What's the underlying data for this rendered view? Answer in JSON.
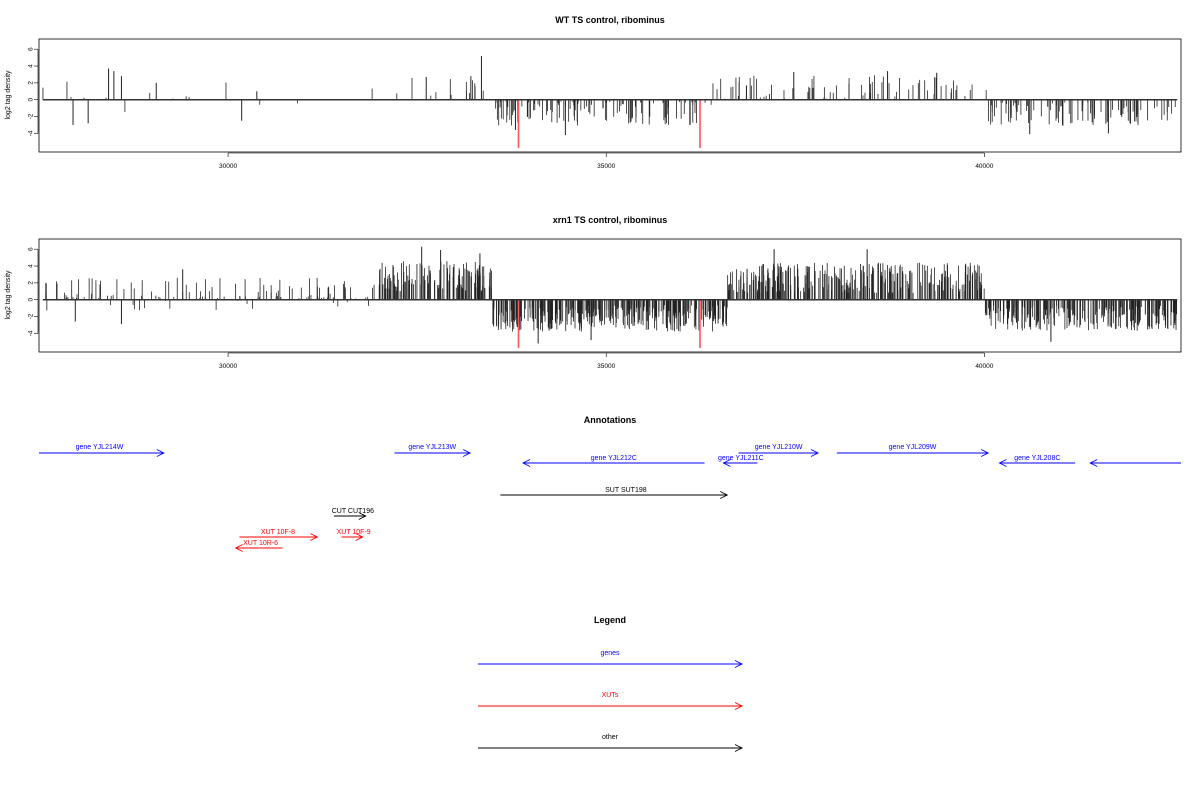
{
  "chart_data": [
    {
      "type": "bar",
      "title": "WT TS control, ribominus",
      "xlabel": "",
      "ylabel": "log2 tag density",
      "xlim": [
        27500,
        42600
      ],
      "ylim": [
        -5.5,
        6.5
      ],
      "x_ticks": [
        "30000",
        "35000",
        "40000"
      ],
      "y_ticks": [
        "6",
        "4",
        "2",
        "0",
        "-2",
        "-4"
      ],
      "colors": {
        "bars": "#222222",
        "markers": "#ff5555"
      },
      "markers": [
        33840,
        36240
      ],
      "regions": [
        {
          "start": 27550,
          "end": 30400,
          "mean_height": 0.3,
          "density": 0.004,
          "amplitude": 2.2
        },
        {
          "start": 30400,
          "end": 31600,
          "mean_height": 0.0,
          "density": 0.002,
          "amplitude": 1.5
        },
        {
          "start": 31600,
          "end": 33500,
          "mean_height": 1.2,
          "density": 0.012,
          "amplitude": 1.5
        },
        {
          "start": 33500,
          "end": 36400,
          "mean_height": -1.6,
          "density": 0.045,
          "amplitude": 1.5
        },
        {
          "start": 36400,
          "end": 40050,
          "mean_height": 1.4,
          "density": 0.022,
          "amplitude": 1.5
        },
        {
          "start": 40050,
          "end": 42550,
          "mean_height": -1.7,
          "density": 0.04,
          "amplitude": 1.4
        }
      ],
      "spikes": [
        {
          "x": 28420,
          "y": 3.7
        },
        {
          "x": 28490,
          "y": 3.4
        },
        {
          "x": 28590,
          "y": 2.8
        },
        {
          "x": 29050,
          "y": 2.0
        },
        {
          "x": 30380,
          "y": 1.0
        },
        {
          "x": 30180,
          "y": -2.5
        },
        {
          "x": 27950,
          "y": -3.0
        },
        {
          "x": 28150,
          "y": -2.8
        },
        {
          "x": 33350,
          "y": 5.2
        },
        {
          "x": 33210,
          "y": 2.8
        },
        {
          "x": 32620,
          "y": 2.7
        },
        {
          "x": 33800,
          "y": -3.6
        },
        {
          "x": 34460,
          "y": -4.2
        },
        {
          "x": 38720,
          "y": 3.4
        },
        {
          "x": 39370,
          "y": 3.2
        },
        {
          "x": 37480,
          "y": 3.3
        },
        {
          "x": 40600,
          "y": -4.1
        },
        {
          "x": 41640,
          "y": -4.0
        }
      ]
    },
    {
      "type": "bar",
      "title": "xrn1 TS control, ribominus",
      "xlabel": "",
      "ylabel": "log2 tag density",
      "xlim": [
        27500,
        42600
      ],
      "ylim": [
        -5.5,
        6.5
      ],
      "x_ticks": [
        "30000",
        "35000",
        "40000"
      ],
      "y_ticks": [
        "6",
        "4",
        "2",
        "0",
        "-2",
        "-4"
      ],
      "colors": {
        "bars": "#222222",
        "markers": "#ff5555"
      },
      "markers": [
        33840,
        36240
      ],
      "regions": [
        {
          "start": 27550,
          "end": 31900,
          "mean_height": 0.6,
          "density": 0.03,
          "amplitude": 2.0
        },
        {
          "start": 31900,
          "end": 33500,
          "mean_height": 2.8,
          "density": 0.09,
          "amplitude": 1.8
        },
        {
          "start": 33500,
          "end": 36600,
          "mean_height": -2.2,
          "density": 0.12,
          "amplitude": 1.6
        },
        {
          "start": 36600,
          "end": 40000,
          "mean_height": 2.6,
          "density": 0.09,
          "amplitude": 1.8
        },
        {
          "start": 40000,
          "end": 42550,
          "mean_height": -2.2,
          "density": 0.1,
          "amplitude": 1.5
        }
      ],
      "spikes": [
        {
          "x": 32560,
          "y": 6.3
        },
        {
          "x": 32810,
          "y": 5.9
        },
        {
          "x": 37220,
          "y": 6.0
        },
        {
          "x": 38450,
          "y": 6.0
        },
        {
          "x": 33330,
          "y": 5.5
        },
        {
          "x": 34100,
          "y": -5.2
        },
        {
          "x": 34800,
          "y": -4.8
        },
        {
          "x": 40880,
          "y": -5.0
        },
        {
          "x": 29400,
          "y": 3.6
        },
        {
          "x": 27980,
          "y": -2.6
        },
        {
          "x": 28590,
          "y": -2.9
        }
      ]
    }
  ],
  "annotations": {
    "title": "Annotations",
    "features": [
      {
        "label": "gene YJL214W",
        "type": "gene",
        "strand": "+",
        "start": 27500,
        "end": 29150,
        "row": 1,
        "label_x": 28300,
        "label_row": 1
      },
      {
        "label": "gene YJL213W",
        "type": "gene",
        "strand": "+",
        "start": 32200,
        "end": 33200,
        "row": 1,
        "label_x": 32700,
        "label_row": 1
      },
      {
        "label": "gene YJL212C",
        "type": "gene",
        "strand": "-",
        "start": 33900,
        "end": 36300,
        "row": 2,
        "label_x": 35100,
        "label_row": 2
      },
      {
        "label": "gene YJL210W",
        "type": "gene",
        "strand": "+",
        "start": 36750,
        "end": 37800,
        "row": 1,
        "label_x": 37280,
        "label_row": 1
      },
      {
        "label": "gene YJL211C",
        "type": "gene",
        "strand": "-",
        "start": 36550,
        "end": 37000,
        "row": 2,
        "label_x": 36780,
        "label_row": 2
      },
      {
        "label": "gene YJL209W",
        "type": "gene",
        "strand": "+",
        "start": 38050,
        "end": 40050,
        "row": 1,
        "label_x": 39050,
        "label_row": 1
      },
      {
        "label": "gene YJL208C",
        "type": "gene",
        "strand": "-",
        "start": 40200,
        "end": 41200,
        "row": 2,
        "label_x": 40700,
        "label_row": 2
      },
      {
        "label": "",
        "type": "gene",
        "strand": "-",
        "start": 41400,
        "end": 43400,
        "row": 2,
        "label_x": 42400,
        "label_row": 2
      },
      {
        "label": "SUT SUT198",
        "type": "other",
        "strand": "+",
        "start": 33600,
        "end": 36600,
        "row": 3,
        "label_x": 35260,
        "label_row": 3
      },
      {
        "label": "CUT CUT196",
        "type": "other",
        "strand": "+",
        "start": 31400,
        "end": 31820,
        "row": 4,
        "label_x": 31650,
        "label_row": 4
      },
      {
        "label": "XUT 10F-8",
        "type": "xut",
        "strand": "+",
        "start": 30150,
        "end": 31180,
        "row": 5,
        "label_x": 30660,
        "label_row": 5
      },
      {
        "label": "XUT 10R-6",
        "type": "xut",
        "strand": "-",
        "start": 30100,
        "end": 30720,
        "row": 6,
        "label_x": 30430,
        "label_row": 6
      },
      {
        "label": "XUT 10F-9",
        "type": "xut",
        "strand": "+",
        "start": 31500,
        "end": 31780,
        "row": 5,
        "label_x": 31660,
        "label_row": 5
      }
    ]
  },
  "legend": {
    "title": "Legend",
    "items": [
      {
        "label": "genes",
        "color": "#0000ff"
      },
      {
        "label": "XUTs",
        "color": "#ff0000"
      },
      {
        "label": "other",
        "color": "#000000"
      }
    ]
  }
}
